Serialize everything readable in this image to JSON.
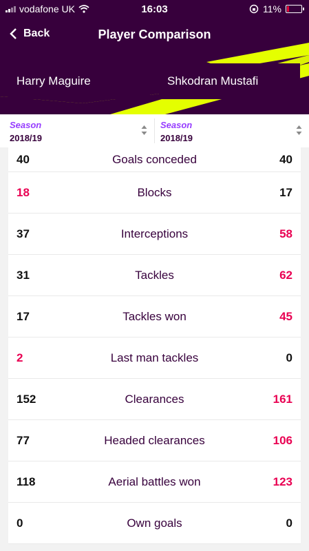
{
  "status_bar": {
    "carrier": "vodafone UK",
    "time": "16:03",
    "battery": "11%"
  },
  "colors": {
    "brand_purple": "#37003c",
    "highlight_pink": "#e90052",
    "season_purple": "#963cff",
    "accent_yellow": "#e4ff00"
  },
  "nav": {
    "back_label": "Back",
    "title": "Player Comparison"
  },
  "players": {
    "a": "Harry Maguire",
    "b": "Shkodran Mustafi"
  },
  "season": {
    "a": {
      "label": "Season",
      "value": "2018/19"
    },
    "b": {
      "label": "Season",
      "value": "2018/19"
    }
  },
  "stats": [
    {
      "label": "Goals conceded",
      "a": "40",
      "b": "40",
      "highlight": "none"
    },
    {
      "label": "Blocks",
      "a": "18",
      "b": "17",
      "highlight": "a"
    },
    {
      "label": "Interceptions",
      "a": "37",
      "b": "58",
      "highlight": "b"
    },
    {
      "label": "Tackles",
      "a": "31",
      "b": "62",
      "highlight": "b"
    },
    {
      "label": "Tackles won",
      "a": "17",
      "b": "45",
      "highlight": "b"
    },
    {
      "label": "Last man tackles",
      "a": "2",
      "b": "0",
      "highlight": "a"
    },
    {
      "label": "Clearances",
      "a": "152",
      "b": "161",
      "highlight": "b"
    },
    {
      "label": "Headed clearances",
      "a": "77",
      "b": "106",
      "highlight": "b"
    },
    {
      "label": "Aerial battles won",
      "a": "118",
      "b": "123",
      "highlight": "b"
    },
    {
      "label": "Own goals",
      "a": "0",
      "b": "0",
      "highlight": "none"
    }
  ]
}
